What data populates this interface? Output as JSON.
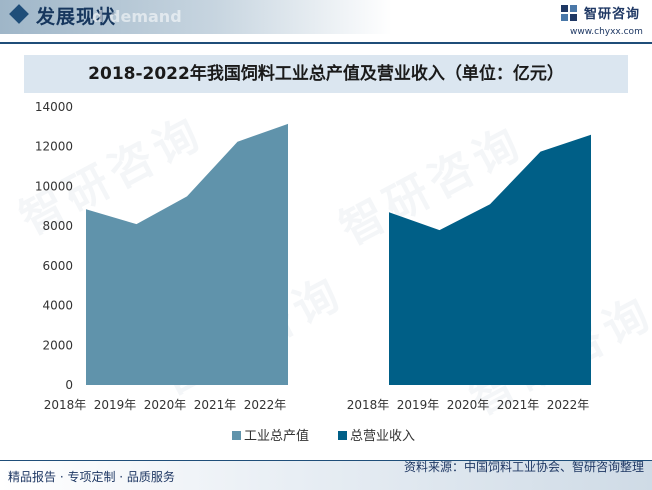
{
  "header": {
    "title": "发展现状",
    "ghost_text": "d demand",
    "brand_name": "智研咨询",
    "brand_url": "www.chyxx.com"
  },
  "watermark": "智研咨询",
  "chart_data": {
    "type": "area",
    "title": "2018-2022年我国饲料工业总产值及营业收入（单位：亿元）",
    "ylim": [
      0,
      14000
    ],
    "yticks": [
      0,
      2000,
      4000,
      6000,
      8000,
      10000,
      12000,
      14000
    ],
    "categories": [
      "2018年",
      "2019年",
      "2020年",
      "2021年",
      "2022年"
    ],
    "series": [
      {
        "name": "工业总产值",
        "color": "#6093ab",
        "values": [
          8850,
          8100,
          9500,
          12250,
          13150
        ]
      },
      {
        "name": "总营业收入",
        "color": "#005f87",
        "values": [
          8700,
          7800,
          9100,
          11750,
          12600
        ]
      }
    ],
    "legend_position": "bottom"
  },
  "footer": {
    "left": "精品报告 · 专项定制 · 品质服务",
    "right": "资料来源：中国饲料工业协会、智研咨询整理"
  }
}
